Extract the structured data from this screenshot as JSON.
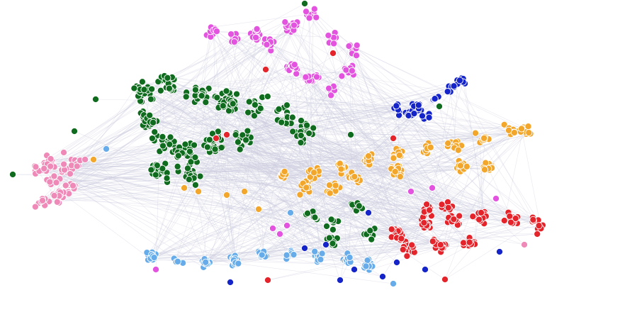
{
  "graph": {
    "background": "#ffffff",
    "edge_color": "#c9c9de",
    "node_stroke": "#ffffff",
    "clusters": [
      {
        "name": "magenta",
        "color": "#e353e0"
      },
      {
        "name": "dark-green",
        "color": "#0f6b1e"
      },
      {
        "name": "blue",
        "color": "#1424c8"
      },
      {
        "name": "orange",
        "color": "#f2a72c"
      },
      {
        "name": "pink",
        "color": "#ef8ab8"
      },
      {
        "name": "red",
        "color": "#e4232a"
      },
      {
        "name": "light-blue",
        "color": "#66acea"
      }
    ]
  }
}
